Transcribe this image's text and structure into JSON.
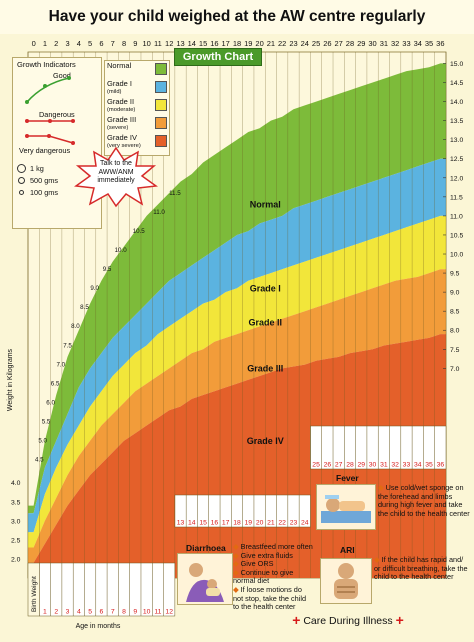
{
  "banner": "Have your child weighed at the AW centre regularly",
  "chart_data": {
    "type": "area",
    "title": "Growth Chart",
    "xlabel": "Age in months",
    "ylabel": "Weight in Kilograms",
    "x_ticks_top": [
      0,
      1,
      2,
      3,
      4,
      5,
      6,
      7,
      8,
      9,
      10,
      11,
      12,
      13,
      14,
      15,
      16,
      17,
      18,
      19,
      20,
      21,
      22,
      23,
      24,
      25,
      26,
      27,
      28,
      29,
      30,
      31,
      32,
      33,
      34,
      35,
      36
    ],
    "xlim": [
      0,
      36
    ],
    "ylim": [
      1.5,
      15.3
    ],
    "y_ticks_right": [
      "15.0",
      "14.5",
      "14.0",
      "13.5",
      "13.0",
      "12.5",
      "12.0",
      "11.5",
      "11.0",
      "10.5",
      "10.0",
      "9.5",
      "9.0",
      "8.5",
      "8.0",
      "7.5",
      "7.0"
    ],
    "y_ticks_left": [
      "4.0",
      "3.5",
      "3.0",
      "2.5",
      "2.0"
    ],
    "bottom_row_months": [
      "1",
      "2",
      "3",
      "4",
      "5",
      "6",
      "7",
      "8",
      "9",
      "10",
      "11",
      "12"
    ],
    "row2_months": [
      "13",
      "14",
      "15",
      "16",
      "17",
      "18",
      "19",
      "20",
      "21",
      "22",
      "23",
      "24"
    ],
    "row3_months": [
      "25",
      "26",
      "27",
      "28",
      "29",
      "30",
      "31",
      "32",
      "33",
      "34",
      "35",
      "36"
    ],
    "birth_weight_label": "Birth Weight",
    "inline_labels": [
      {
        "x": 11.1,
        "y": 11.0,
        "text": "11.0"
      },
      {
        "x": 12.5,
        "y": 11.5,
        "text": "11.5"
      },
      {
        "x": 9.3,
        "y": 10.5,
        "text": "10.5"
      },
      {
        "x": 7.7,
        "y": 10.0,
        "text": "10.0"
      },
      {
        "x": 6.5,
        "y": 9.5,
        "text": "9.5"
      },
      {
        "x": 5.4,
        "y": 9.0,
        "text": "9.0"
      },
      {
        "x": 4.5,
        "y": 8.5,
        "text": "8.5"
      },
      {
        "x": 3.7,
        "y": 8.0,
        "text": "8.0"
      },
      {
        "x": 3.0,
        "y": 7.5,
        "text": "7.5"
      },
      {
        "x": 2.4,
        "y": 7.0,
        "text": "7.0"
      },
      {
        "x": 1.9,
        "y": 6.5,
        "text": "6.5"
      },
      {
        "x": 1.5,
        "y": 6.0,
        "text": "6.0"
      },
      {
        "x": 1.1,
        "y": 5.5,
        "text": "5.5"
      },
      {
        "x": 0.8,
        "y": 5.0,
        "text": "5.0"
      },
      {
        "x": 0.5,
        "y": 4.5,
        "text": "4.5"
      }
    ],
    "series": [
      {
        "name": "Normal",
        "color": "#7dbb3a",
        "lower": [
          3.2,
          4.4,
          5.1,
          5.8,
          6.5,
          7.0,
          7.4,
          7.8,
          8.1,
          8.4,
          8.7,
          9.0,
          9.3,
          9.5,
          9.7,
          9.9,
          10.1,
          10.3,
          10.5,
          10.6,
          10.8,
          10.9,
          11.0,
          11.2,
          11.3,
          11.4,
          11.5,
          11.6,
          11.7,
          11.8,
          11.9,
          12.0,
          12.1,
          12.2,
          12.3,
          12.4,
          12.5
        ],
        "upper": [
          3.4,
          5.1,
          6.3,
          7.3,
          8.0,
          8.7,
          9.3,
          9.8,
          10.2,
          10.6,
          11.0,
          11.3,
          11.6,
          11.9,
          12.1,
          12.4,
          12.6,
          12.8,
          13.0,
          13.2,
          13.3,
          13.5,
          13.6,
          13.8,
          13.9,
          14.0,
          14.1,
          14.2,
          14.3,
          14.4,
          14.5,
          14.6,
          14.7,
          14.8,
          14.85,
          14.9,
          15.0
        ]
      },
      {
        "name": "Grade I",
        "sub": "(mild)",
        "color": "#5bb3e0",
        "lower": [
          2.7,
          3.7,
          4.4,
          5.0,
          5.5,
          6.0,
          6.4,
          6.8,
          7.1,
          7.4,
          7.6,
          7.9,
          8.1,
          8.3,
          8.5,
          8.7,
          8.8,
          9.0,
          9.1,
          9.3,
          9.4,
          9.5,
          9.6,
          9.7,
          9.8,
          9.9,
          10.0,
          10.1,
          10.2,
          10.3,
          10.4,
          10.5,
          10.6,
          10.7,
          10.8,
          10.9,
          11.0
        ],
        "upper": [
          3.2,
          4.4,
          5.1,
          5.8,
          6.5,
          7.0,
          7.4,
          7.8,
          8.1,
          8.4,
          8.7,
          9.0,
          9.3,
          9.5,
          9.7,
          9.9,
          10.1,
          10.3,
          10.5,
          10.6,
          10.8,
          10.9,
          11.0,
          11.2,
          11.3,
          11.4,
          11.5,
          11.6,
          11.7,
          11.8,
          11.9,
          12.0,
          12.1,
          12.2,
          12.3,
          12.4,
          12.5
        ]
      },
      {
        "name": "Grade II",
        "sub": "(moderate)",
        "color": "#f2e63a",
        "lower": [
          2.3,
          3.0,
          3.6,
          4.2,
          4.7,
          5.1,
          5.5,
          5.8,
          6.1,
          6.4,
          6.6,
          6.8,
          7.0,
          7.2,
          7.4,
          7.5,
          7.7,
          7.8,
          7.9,
          8.0,
          8.1,
          8.2,
          8.3,
          8.4,
          8.5,
          8.6,
          8.7,
          8.8,
          8.9,
          9.0,
          9.1,
          9.2,
          9.3,
          9.35,
          9.4,
          9.5,
          9.6
        ],
        "upper": [
          2.7,
          3.7,
          4.4,
          5.0,
          5.5,
          6.0,
          6.4,
          6.8,
          7.1,
          7.4,
          7.6,
          7.9,
          8.1,
          8.3,
          8.5,
          8.7,
          8.8,
          9.0,
          9.1,
          9.3,
          9.4,
          9.5,
          9.6,
          9.7,
          9.8,
          9.9,
          10.0,
          10.1,
          10.2,
          10.3,
          10.4,
          10.5,
          10.6,
          10.7,
          10.8,
          10.9,
          11.0
        ]
      },
      {
        "name": "Grade III",
        "sub": "(severe)",
        "color": "#f29c3a",
        "lower": [
          1.9,
          2.4,
          2.9,
          3.4,
          3.8,
          4.2,
          4.5,
          4.8,
          5.1,
          5.3,
          5.5,
          5.7,
          5.9,
          6.0,
          6.2,
          6.3,
          6.4,
          6.5,
          6.6,
          6.7,
          6.8,
          6.9,
          7.0,
          7.05,
          7.1,
          7.2,
          7.25,
          7.3,
          7.4,
          7.45,
          7.5,
          7.6,
          7.65,
          7.7,
          7.75,
          7.8,
          7.9
        ],
        "upper": [
          2.3,
          3.0,
          3.6,
          4.2,
          4.7,
          5.1,
          5.5,
          5.8,
          6.1,
          6.4,
          6.6,
          6.8,
          7.0,
          7.2,
          7.4,
          7.5,
          7.7,
          7.8,
          7.9,
          8.0,
          8.1,
          8.2,
          8.3,
          8.4,
          8.5,
          8.6,
          8.7,
          8.8,
          8.9,
          9.0,
          9.1,
          9.2,
          9.3,
          9.35,
          9.4,
          9.5,
          9.6
        ]
      },
      {
        "name": "Grade IV",
        "sub": "(very severe)",
        "color": "#e4602a",
        "lower": [
          1.5,
          1.5,
          1.5,
          1.5,
          1.5,
          1.5,
          1.5,
          1.5,
          1.5,
          1.5,
          1.5,
          1.5,
          1.5,
          1.5,
          1.5,
          1.5,
          1.5,
          1.5,
          1.5,
          1.5,
          1.5,
          1.5,
          1.5,
          1.5,
          1.5,
          1.5,
          1.5,
          1.5,
          1.5,
          1.5,
          1.5,
          1.5,
          1.5,
          1.5,
          1.5,
          1.5,
          1.5
        ],
        "upper": [
          1.9,
          2.4,
          2.9,
          3.4,
          3.8,
          4.2,
          4.5,
          4.8,
          5.1,
          5.3,
          5.5,
          5.7,
          5.9,
          6.0,
          6.2,
          6.3,
          6.4,
          6.5,
          6.6,
          6.7,
          6.8,
          6.9,
          7.0,
          7.05,
          7.1,
          7.2,
          7.25,
          7.3,
          7.4,
          7.45,
          7.5,
          7.6,
          7.65,
          7.7,
          7.75,
          7.8,
          7.9
        ]
      }
    ],
    "band_labels": [
      {
        "text": "Normal",
        "x": 20.5,
        "y": 11.3
      },
      {
        "text": "Grade I",
        "x": 20.5,
        "y": 9.1
      },
      {
        "text": "Grade II",
        "x": 20.5,
        "y": 8.2
      },
      {
        "text": "Grade III",
        "x": 20.5,
        "y": 7.0
      },
      {
        "text": "Grade IV",
        "x": 20.5,
        "y": 5.1
      }
    ]
  },
  "legend": {
    "items": [
      {
        "label": "Normal",
        "sub": "",
        "color": "#7dbb3a"
      },
      {
        "label": "Grade I",
        "sub": "(mild)",
        "color": "#5bb3e0"
      },
      {
        "label": "Grade II",
        "sub": "(moderate)",
        "color": "#f2e63a"
      },
      {
        "label": "Grade III",
        "sub": "(severe)",
        "color": "#f29c3a"
      },
      {
        "label": "Grade IV",
        "sub": "(very severe)",
        "color": "#e4602a"
      }
    ]
  },
  "indicators": {
    "title": "Growth Indicators",
    "good": "Good",
    "dangerous": "Dangerous",
    "very_dangerous": "Very dangerous",
    "weights": [
      "1 kg",
      "500 gms",
      "100 gms"
    ]
  },
  "alert": {
    "text": "Talk to the AWW/ANM immediately"
  },
  "illness": {
    "footer": "Care During Illness",
    "fever": {
      "title": "Fever",
      "advice": [
        "Use cold/wet sponge on the forehead and limbs during high fever and take the child to the health center"
      ]
    },
    "diarrhoea": {
      "title": "Diarrhoea",
      "advice": [
        "Breastfeed more often",
        "Give extra fluids",
        "Give ORS",
        "Continue to give normal diet",
        "If loose motions do not stop, take the child to the health center"
      ]
    },
    "ari": {
      "title": "ARI",
      "advice": [
        "If the child has rapid and/ or difficult breathing, take the child to the health center"
      ]
    }
  }
}
